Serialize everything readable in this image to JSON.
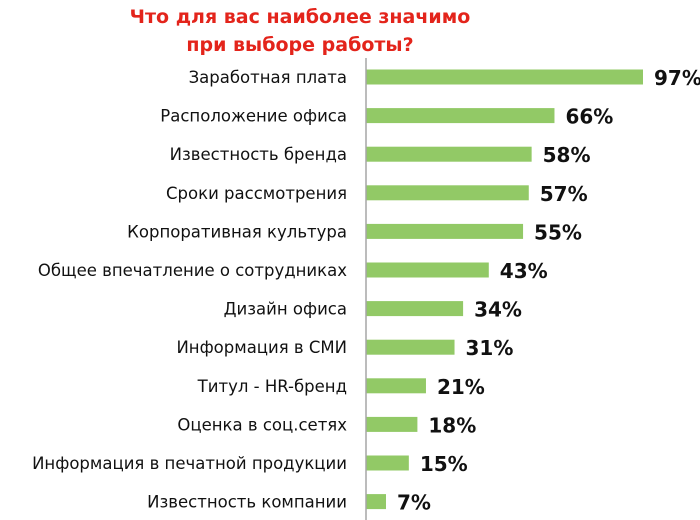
{
  "chart_data": {
    "type": "bar",
    "orientation": "horizontal",
    "title": [
      "Что для вас наиболее значимо",
      "при выборе работы?"
    ],
    "categories": [
      "Заработная плата",
      "Расположение офиса",
      "Известность бренда",
      "Сроки рассмотрения",
      "Корпоративная культура",
      "Общее впечатление о сотрудниках",
      "Дизайн офиса",
      "Информация в СМИ",
      "Титул - HR-бренд",
      "Оценка в соц.сетях",
      "Информация в печатной продукции",
      "Известность компании"
    ],
    "values": [
      97,
      66,
      58,
      57,
      55,
      43,
      34,
      31,
      21,
      18,
      15,
      7
    ],
    "value_labels": [
      "97%",
      "66%",
      "58%",
      "57%",
      "55%",
      "43%",
      "34%",
      "31%",
      "21%",
      "18%",
      "15%",
      "7%"
    ],
    "unit": "%",
    "xlim": [
      0,
      100
    ],
    "grid": false,
    "legend": "none",
    "colors": {
      "bar": "#92c966",
      "title": "#e3241b",
      "axis": "#a6a6a6"
    }
  }
}
